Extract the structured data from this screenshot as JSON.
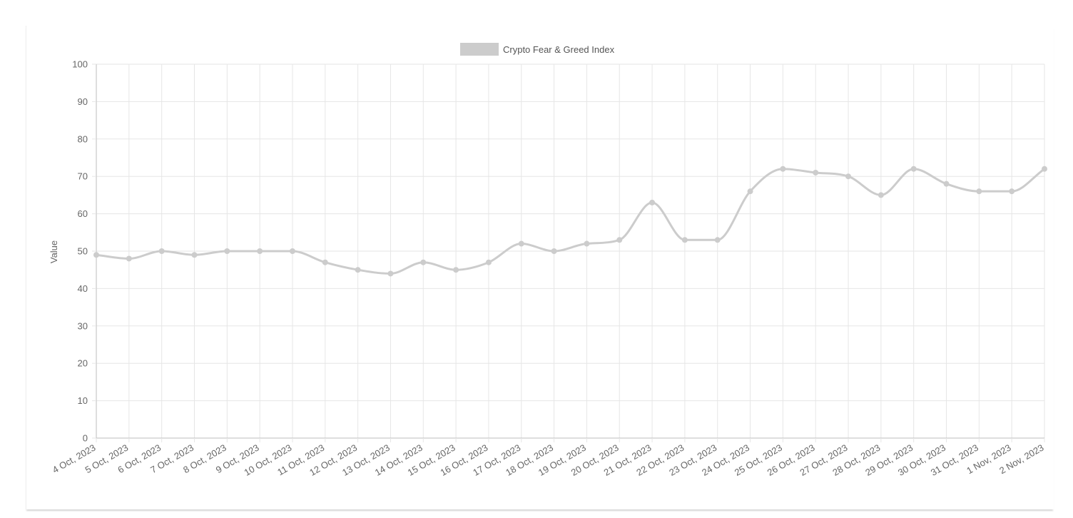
{
  "chart_data": {
    "type": "line",
    "title": "",
    "xlabel": "",
    "ylabel": "Value",
    "ylim": [
      0,
      100
    ],
    "yticks": [
      0,
      10,
      20,
      30,
      40,
      50,
      60,
      70,
      80,
      90,
      100
    ],
    "grid": true,
    "legend_position": "top-center",
    "categories": [
      "4 Oct, 2023",
      "5 Oct, 2023",
      "6 Oct, 2023",
      "7 Oct, 2023",
      "8 Oct, 2023",
      "9 Oct, 2023",
      "10 Oct, 2023",
      "11 Oct, 2023",
      "12 Oct, 2023",
      "13 Oct, 2023",
      "14 Oct, 2023",
      "15 Oct, 2023",
      "16 Oct, 2023",
      "17 Oct, 2023",
      "18 Oct, 2023",
      "19 Oct, 2023",
      "20 Oct, 2023",
      "21 Oct, 2023",
      "22 Oct, 2023",
      "23 Oct, 2023",
      "24 Oct, 2023",
      "25 Oct, 2023",
      "26 Oct, 2023",
      "27 Oct, 2023",
      "28 Oct, 2023",
      "29 Oct, 2023",
      "30 Oct, 2023",
      "31 Oct, 2023",
      "1 Nov, 2023",
      "2 Nov, 2023"
    ],
    "series": [
      {
        "name": "Crypto Fear & Greed Index",
        "color": "#cccccc",
        "values": [
          49,
          48,
          50,
          49,
          50,
          50,
          50,
          47,
          45,
          44,
          47,
          45,
          47,
          52,
          50,
          52,
          53,
          63,
          53,
          53,
          66,
          72,
          71,
          70,
          65,
          72,
          68,
          66,
          66,
          72
        ]
      }
    ],
    "colors": {
      "grid": "#e6e6e6",
      "axis": "#bdbdbd",
      "line": "#cccccc",
      "text": "#666666"
    }
  }
}
